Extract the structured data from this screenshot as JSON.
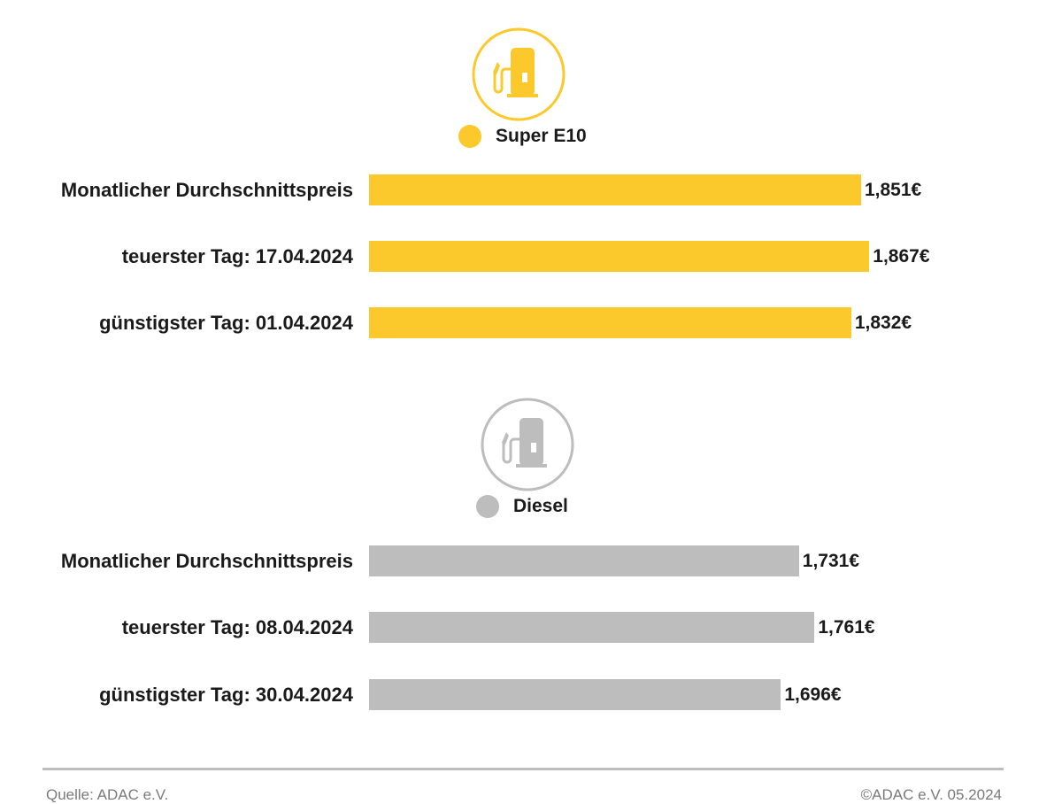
{
  "colors": {
    "e10": "#fbc92c",
    "diesel": "#bdbdbd",
    "divider": "#bdbdbd"
  },
  "chart_data": [
    {
      "type": "bar",
      "orientation": "horizontal",
      "icon": "fuel-pump-icon",
      "legend": "Super E10",
      "color": "#fbc92c",
      "categories": [
        "Monatlicher Durchschnittspreis",
        "teuerster Tag: 17.04.2024",
        "günstigster Tag: 01.04.2024"
      ],
      "values": [
        1.851,
        1.867,
        1.832
      ],
      "value_labels": [
        "1,851€",
        "1,867€",
        "1,832€"
      ]
    },
    {
      "type": "bar",
      "orientation": "horizontal",
      "icon": "fuel-pump-icon",
      "legend": "Diesel",
      "color": "#bdbdbd",
      "categories": [
        "Monatlicher Durchschnittspreis",
        "teuerster Tag: 08.04.2024",
        "günstigster Tag: 30.04.2024"
      ],
      "values": [
        1.731,
        1.761,
        1.696
      ],
      "value_labels": [
        "1,731€",
        "1,761€",
        "1,696€"
      ]
    }
  ],
  "footer": {
    "source": "Quelle: ADAC e.V.",
    "copyright": "©ADAC e.V. 05.2024"
  }
}
